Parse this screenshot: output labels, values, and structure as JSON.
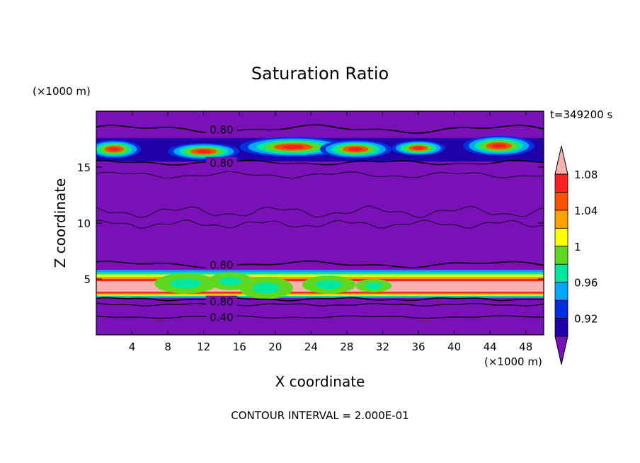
{
  "chart_data": {
    "type": "heatmap",
    "title": "Saturation Ratio",
    "xlabel": "X coordinate",
    "ylabel": "Z coordinate",
    "x_unit": "(×1000 m)",
    "y_unit": "(×1000 m)",
    "time_label": "t=349200 s",
    "footer": "CONTOUR INTERVAL = 2.000E-01",
    "xlim": [
      0,
      50
    ],
    "ylim": [
      0,
      20
    ],
    "x_ticks": [
      "4",
      "8",
      "12",
      "16",
      "20",
      "24",
      "28",
      "32",
      "36",
      "40",
      "44",
      "48"
    ],
    "y_ticks": [
      "5",
      "10",
      "15"
    ],
    "contour_labels": [
      "0.80",
      "0.80",
      "0.80",
      "0.80",
      "0.40"
    ],
    "colorbar": {
      "tick_labels": [
        "0.92",
        "0.96",
        "1",
        "1.04",
        "1.08"
      ],
      "colors": [
        "#7a10b8",
        "#2000a8",
        "#0030e0",
        "#00a8ff",
        "#00e8a0",
        "#60d820",
        "#ffff00",
        "#ffa000",
        "#ff5000",
        "#ff2020",
        "#f8b0b0"
      ]
    },
    "bands": [
      {
        "name": "upper layer",
        "z": [
          15.5,
          17.6
        ]
      },
      {
        "name": "lower layer",
        "z": [
          3.3,
          5.8
        ]
      }
    ]
  }
}
